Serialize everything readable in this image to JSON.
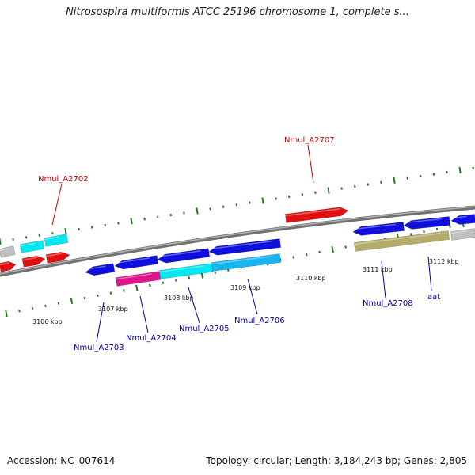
{
  "title": "Nitrosospira multiformis ATCC 25196 chromosome 1, complete s...",
  "footer": {
    "accession": "Accession: NC_007614",
    "summary": "Topology: circular; Length: 3,184,243 bp; Genes: 2,805"
  },
  "colors": {
    "backbone": "#8a8a8a",
    "forward_label": "#cc0000",
    "reverse_label": "#0000aa",
    "tick": "#1f7a1f",
    "blue_gene": "#1010dd",
    "red_gene": "#e01010",
    "cyan_gene": "#00e8f0",
    "light_blue_gene": "#16b4f0",
    "pink_gene": "#e0148c",
    "olive_gene": "#b3ac6a",
    "gray_gene": "#c0c0c0"
  },
  "scale": {
    "labels": [
      "3106 kbp",
      "3107 kbp",
      "3108 kbp",
      "3109 kbp",
      "3110 kbp",
      "3111 kbp",
      "3112 kbp"
    ]
  },
  "gene_labels": [
    {
      "name": "Nmul_A2702",
      "strand": "forward"
    },
    {
      "name": "Nmul_A2707",
      "strand": "forward"
    },
    {
      "name": "Nmul_A2703",
      "strand": "reverse"
    },
    {
      "name": "Nmul_A2704",
      "strand": "reverse"
    },
    {
      "name": "Nmul_A2705",
      "strand": "reverse"
    },
    {
      "name": "Nmul_A2706",
      "strand": "reverse"
    },
    {
      "name": "Nmul_A2708",
      "strand": "reverse"
    },
    {
      "name": "aat",
      "strand": "reverse"
    }
  ]
}
